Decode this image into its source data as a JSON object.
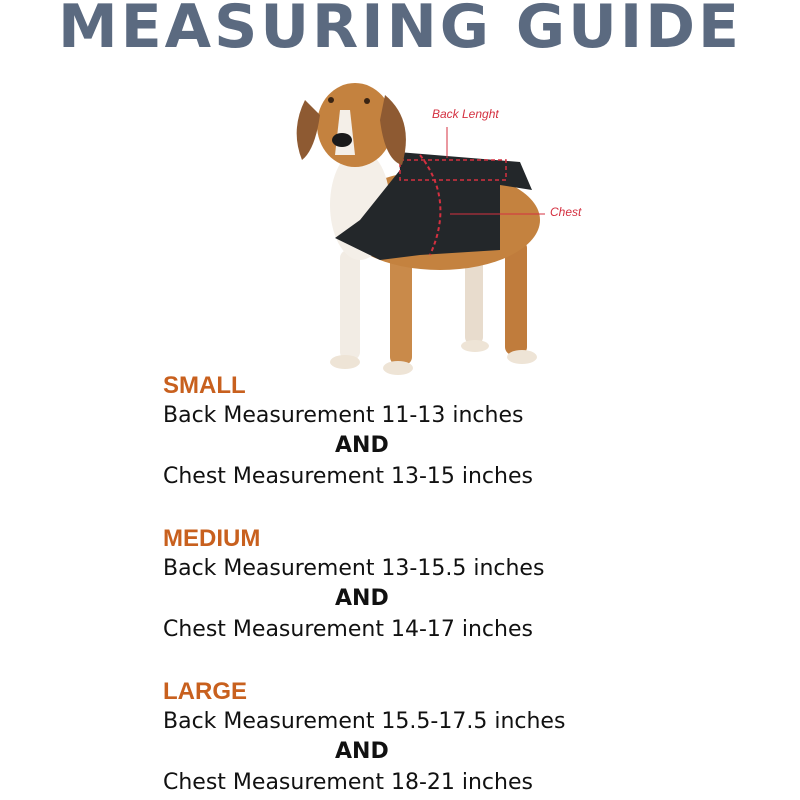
{
  "title": "MEASURING GUIDE",
  "diagram": {
    "back_label": "Back Lenght",
    "chest_label": "Chest",
    "annotation_color": "#d43040"
  },
  "sizes": [
    {
      "name": "SMALL",
      "back": "Back Measurement 11-13 inches",
      "and": "AND",
      "chest": "Chest Measurement 13-15 inches"
    },
    {
      "name": "MEDIUM",
      "back": "Back Measurement 13-15.5 inches",
      "and": "AND",
      "chest": "Chest Measurement 14-17 inches"
    },
    {
      "name": "LARGE",
      "back": "Back Measurement 15.5-17.5 inches",
      "and": "AND",
      "chest": "Chest Measurement 18-21 inches"
    }
  ],
  "colors": {
    "title": "#5b6a80",
    "size_heading": "#c8601e"
  }
}
